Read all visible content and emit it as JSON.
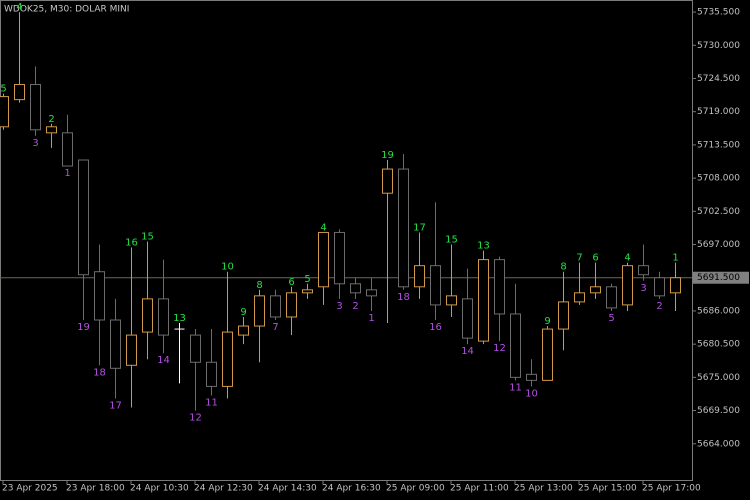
{
  "chart_data": {
    "type": "candlestick",
    "title": "WDOK25, M30:  DOLAR MINI",
    "categories": [
      "23 Apr 2025",
      null,
      null,
      null,
      "23 Apr 18:00",
      null,
      null,
      null,
      "24 Apr 10:30",
      null,
      null,
      null,
      "24 Apr 12:30",
      null,
      null,
      null,
      "24 Apr 14:30",
      null,
      null,
      null,
      "24 Apr 16:30",
      null,
      null,
      null,
      "25 Apr 09:00",
      null,
      null,
      null,
      "25 Apr 11:00",
      null,
      null,
      null,
      "25 Apr 13:00",
      null,
      null,
      null,
      "25 Apr 15:00",
      null,
      null,
      null,
      "25 Apr 17:00",
      null,
      null
    ],
    "open": [
      5716.5,
      5721.0,
      5723.5,
      5715.5,
      5715.5,
      5711.0,
      5692.5,
      5684.5,
      5677.0,
      5682.5,
      5688.0,
      5683.0,
      5682.0,
      5677.5,
      5673.5,
      5682.0,
      5683.5,
      5688.5,
      5685.0,
      5689.0,
      5690.0,
      5699.0,
      5690.5,
      5689.5,
      5705.5,
      5709.5,
      5690.0,
      5693.5,
      5687.0,
      5688.0,
      5681.0,
      5694.5,
      5685.5,
      5675.5,
      5674.5,
      5683.0,
      5687.5,
      5689.0,
      5690.0,
      5687.0,
      5693.5,
      5691.5,
      5689.0
    ],
    "high": [
      5722.0,
      5735.5,
      5726.5,
      5717.0,
      5718.5,
      5711.0,
      5697.0,
      5688.0,
      5696.5,
      5697.5,
      5694.5,
      5684.0,
      5683.0,
      5683.0,
      5692.5,
      5685.0,
      5689.5,
      5689.5,
      5690.0,
      5690.5,
      5699.0,
      5699.5,
      5691.5,
      5691.5,
      5711.0,
      5712.0,
      5699.0,
      5704.0,
      5697.0,
      5693.0,
      5696.0,
      5695.0,
      5690.5,
      5678.0,
      5683.5,
      5692.5,
      5694.0,
      5694.0,
      5690.5,
      5694.0,
      5697.0,
      5692.5,
      5694.0
    ],
    "low": [
      5716.0,
      5720.5,
      5715.0,
      5713.0,
      5710.0,
      5684.5,
      5677.0,
      5671.5,
      5670.0,
      5678.0,
      5679.0,
      5674.0,
      5669.5,
      5672.0,
      5671.5,
      5680.5,
      5677.5,
      5684.5,
      5682.0,
      5688.0,
      5687.0,
      5688.0,
      5688.0,
      5686.0,
      5684.0,
      5689.5,
      5688.0,
      5684.5,
      5685.0,
      5680.5,
      5680.5,
      5681.0,
      5674.5,
      5673.5,
      5674.5,
      5679.5,
      5687.0,
      5688.0,
      5686.0,
      5686.0,
      5691.0,
      5688.0,
      5686.0
    ],
    "close": [
      5721.5,
      5723.5,
      5716.0,
      5716.5,
      5710.0,
      5692.0,
      5684.5,
      5676.5,
      5682.0,
      5688.0,
      5682.0,
      5683.0,
      5677.5,
      5673.5,
      5682.5,
      5683.5,
      5688.5,
      5685.0,
      5689.0,
      5689.5,
      5699.0,
      5690.5,
      5689.0,
      5688.5,
      5709.5,
      5690.0,
      5693.5,
      5687.0,
      5688.5,
      5681.5,
      5694.5,
      5685.5,
      5675.0,
      5674.5,
      5683.0,
      5687.5,
      5689.0,
      5690.0,
      5686.5,
      5693.5,
      5692.0,
      5688.5,
      5691.5
    ],
    "counts": [
      5,
      4,
      3,
      2,
      1,
      19,
      18,
      17,
      16,
      15,
      14,
      13,
      12,
      11,
      10,
      9,
      8,
      7,
      6,
      5,
      4,
      3,
      2,
      1,
      19,
      18,
      17,
      16,
      15,
      14,
      13,
      12,
      11,
      10,
      9,
      8,
      7,
      6,
      5,
      4,
      3,
      2,
      1
    ],
    "up_color": "#d09848",
    "down_color": "#6c6c6c",
    "doji_color": "#ffffff",
    "count_up_color": "#22e040",
    "count_down_color": "#b050e0",
    "ylim": [
      5658,
      5737.5
    ],
    "yticks": [
      {
        "value": 5735.5,
        "label": "5735.500"
      },
      {
        "value": 5730.0,
        "label": "5730.000"
      },
      {
        "value": 5724.5,
        "label": "5724.500"
      },
      {
        "value": 5719.0,
        "label": "5719.000"
      },
      {
        "value": 5713.5,
        "label": "5713.500"
      },
      {
        "value": 5708.0,
        "label": "5708.000"
      },
      {
        "value": 5702.5,
        "label": "5702.500"
      },
      {
        "value": 5697.0,
        "label": "5697.000"
      },
      {
        "value": 5686.0,
        "label": "5686.000"
      },
      {
        "value": 5680.5,
        "label": "5680.500"
      },
      {
        "value": 5675.0,
        "label": "5675.000"
      },
      {
        "value": 5669.5,
        "label": "5669.500"
      },
      {
        "value": 5664.0,
        "label": "5664.000"
      }
    ],
    "last_price": {
      "value": 5691.5,
      "label": "5691.500"
    }
  }
}
